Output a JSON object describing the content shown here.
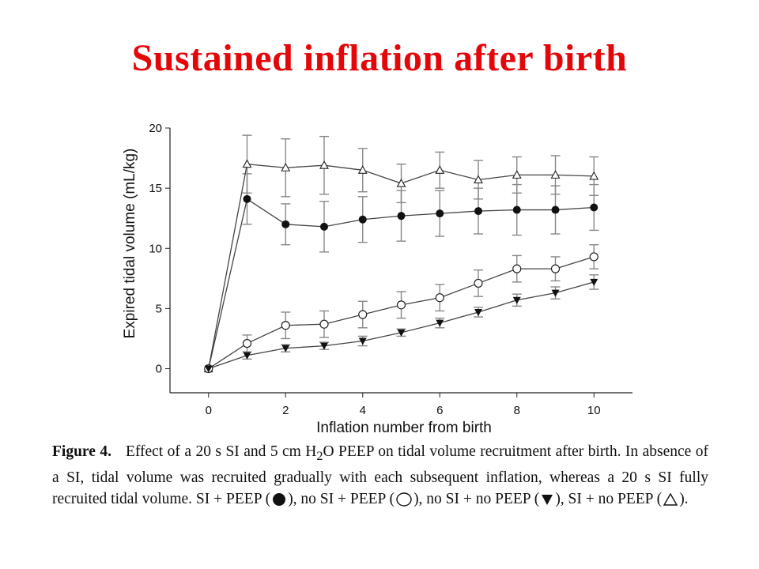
{
  "slide": {
    "title": "Sustained inflation after birth"
  },
  "colors": {
    "title": "#e3070a",
    "lines": "#444444",
    "error_bars": "#888888"
  },
  "chart_data": {
    "type": "line",
    "title": "",
    "xlabel": "Inflation number from birth",
    "ylabel": "Expired tidal volume (mL/kg)",
    "xlim": [
      -1,
      11
    ],
    "ylim": [
      -2,
      20
    ],
    "xticks": [
      0,
      2,
      4,
      6,
      8,
      10
    ],
    "yticks": [
      0,
      5,
      10,
      15,
      20
    ],
    "grid": false,
    "x": [
      0,
      1,
      2,
      3,
      4,
      5,
      6,
      7,
      8,
      9,
      10
    ],
    "series": [
      {
        "name": "SI + no PEEP",
        "marker": "triangle-up-open",
        "values": [
          0,
          17.0,
          16.7,
          16.9,
          16.5,
          15.4,
          16.5,
          15.7,
          16.1,
          16.1,
          16.0
        ],
        "errors": [
          0,
          2.4,
          2.4,
          2.4,
          1.8,
          1.6,
          1.5,
          1.6,
          1.5,
          1.6,
          1.6
        ]
      },
      {
        "name": "SI + PEEP",
        "marker": "circle-filled",
        "values": [
          0,
          14.1,
          12.0,
          11.8,
          12.4,
          12.7,
          12.9,
          13.1,
          13.2,
          13.2,
          13.4
        ],
        "errors": [
          0,
          2.1,
          1.7,
          2.1,
          1.9,
          2.1,
          1.9,
          1.9,
          2.1,
          2.0,
          1.9
        ]
      },
      {
        "name": "no SI + PEEP",
        "marker": "circle-open",
        "values": [
          0,
          2.1,
          3.6,
          3.7,
          4.5,
          5.3,
          5.9,
          7.1,
          8.3,
          8.3,
          9.3
        ],
        "errors": [
          0,
          0.7,
          1.1,
          1.1,
          1.1,
          1.1,
          1.1,
          1.1,
          1.1,
          1.0,
          1.0
        ]
      },
      {
        "name": "no SI + no PEEP",
        "marker": "triangle-down-filled",
        "values": [
          0,
          1.1,
          1.7,
          1.9,
          2.3,
          3.0,
          3.8,
          4.7,
          5.7,
          6.3,
          7.2
        ],
        "errors": [
          0,
          0.3,
          0.3,
          0.3,
          0.4,
          0.3,
          0.4,
          0.4,
          0.5,
          0.5,
          0.6
        ]
      }
    ]
  },
  "caption": {
    "label": "Figure 4.",
    "text_1": "Effect of a 20 s SI and 5 cm H",
    "subscript": "2",
    "text_2": "O PEEP on tidal volume recruitment after birth. In absence of a SI, tidal volume was recruited gradually with each subsequent inflation, whereas a 20 s SI fully recruited tidal volume. SI + PEEP (",
    "text_3": "), no SI + PEEP (",
    "text_4": "), no SI + no PEEP (",
    "text_5": "), SI + no PEEP (",
    "text_6": ")."
  }
}
